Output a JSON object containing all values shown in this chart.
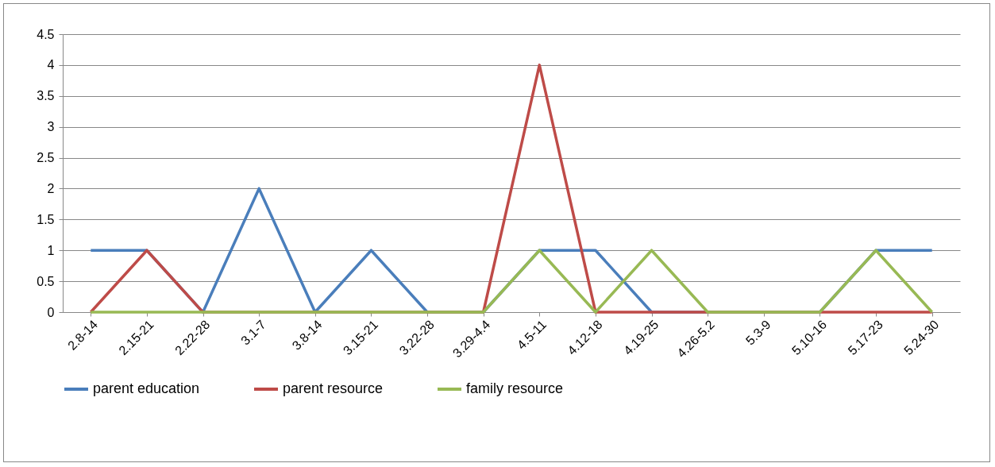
{
  "chart_data": {
    "type": "line",
    "categories": [
      "2.8-14",
      "2.15-21",
      "2.22-28",
      "3.1-7",
      "3.8-14",
      "3.15-21",
      "3.22-28",
      "3.29-4.4",
      "4.5-11",
      "4.12-18",
      "4.19-25",
      "4.26-5.2",
      "5.3-9",
      "5.10-16",
      "5.17-23",
      "5.24-30"
    ],
    "series": [
      {
        "name": "parent education",
        "color": "#4a7ebb",
        "values": [
          1,
          1,
          0,
          2,
          0,
          1,
          0,
          0,
          1,
          1,
          0,
          0,
          0,
          0,
          1,
          1
        ]
      },
      {
        "name": "parent resource",
        "color": "#be4b48",
        "values": [
          0,
          1,
          0,
          0,
          0,
          0,
          0,
          0,
          4,
          0,
          0,
          0,
          0,
          0,
          0,
          0
        ]
      },
      {
        "name": "family resource",
        "color": "#98b954",
        "values": [
          0,
          0,
          0,
          0,
          0,
          0,
          0,
          0,
          1,
          0,
          1,
          0,
          0,
          0,
          1,
          0
        ]
      }
    ],
    "ylim": [
      0,
      4.5
    ],
    "yticks": [
      0,
      0.5,
      1,
      1.5,
      2,
      2.5,
      3,
      3.5,
      4,
      4.5
    ],
    "grid": "y",
    "legend": "bottom",
    "marker": "none",
    "line_style": "solid"
  }
}
